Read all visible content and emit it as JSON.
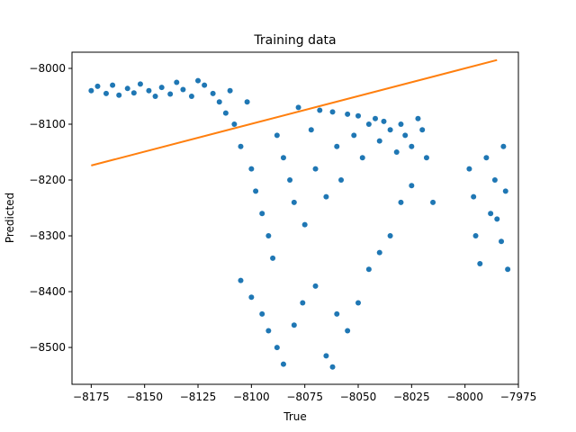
{
  "chart_data": {
    "type": "scatter",
    "title": "Training data",
    "xlabel": "True",
    "ylabel": "Predicted",
    "xlim": [
      -8184,
      -7975
    ],
    "ylim": [
      -8566,
      -7971
    ],
    "xticks": [
      -8175,
      -8150,
      -8125,
      -8100,
      -8075,
      -8050,
      -8025,
      -8000,
      -7975
    ],
    "yticks": [
      -8000,
      -8100,
      -8200,
      -8300,
      -8400,
      -8500
    ],
    "grid": false,
    "series": [
      {
        "kind": "scatter",
        "color": "#1f77b4",
        "points": [
          [
            -8175,
            -8040
          ],
          [
            -8172,
            -8032
          ],
          [
            -8168,
            -8045
          ],
          [
            -8165,
            -8030
          ],
          [
            -8162,
            -8048
          ],
          [
            -8158,
            -8036
          ],
          [
            -8155,
            -8044
          ],
          [
            -8152,
            -8028
          ],
          [
            -8148,
            -8040
          ],
          [
            -8145,
            -8050
          ],
          [
            -8142,
            -8034
          ],
          [
            -8138,
            -8046
          ],
          [
            -8135,
            -8025
          ],
          [
            -8132,
            -8038
          ],
          [
            -8128,
            -8050
          ],
          [
            -8125,
            -8022
          ],
          [
            -8122,
            -8030
          ],
          [
            -8118,
            -8045
          ],
          [
            -8115,
            -8060
          ],
          [
            -8112,
            -8080
          ],
          [
            -8110,
            -8040
          ],
          [
            -8108,
            -8100
          ],
          [
            -8105,
            -8140
          ],
          [
            -8102,
            -8060
          ],
          [
            -8100,
            -8180
          ],
          [
            -8098,
            -8220
          ],
          [
            -8095,
            -8260
          ],
          [
            -8092,
            -8300
          ],
          [
            -8090,
            -8340
          ],
          [
            -8088,
            -8120
          ],
          [
            -8085,
            -8160
          ],
          [
            -8082,
            -8200
          ],
          [
            -8080,
            -8240
          ],
          [
            -8078,
            -8070
          ],
          [
            -8075,
            -8280
          ],
          [
            -8072,
            -8110
          ],
          [
            -8070,
            -8180
          ],
          [
            -8068,
            -8075
          ],
          [
            -8065,
            -8230
          ],
          [
            -8062,
            -8078
          ],
          [
            -8060,
            -8140
          ],
          [
            -8058,
            -8200
          ],
          [
            -8055,
            -8082
          ],
          [
            -8052,
            -8120
          ],
          [
            -8050,
            -8085
          ],
          [
            -8048,
            -8160
          ],
          [
            -8045,
            -8100
          ],
          [
            -8042,
            -8090
          ],
          [
            -8040,
            -8130
          ],
          [
            -8038,
            -8095
          ],
          [
            -8035,
            -8110
          ],
          [
            -8032,
            -8150
          ],
          [
            -8030,
            -8100
          ],
          [
            -8028,
            -8120
          ],
          [
            -8025,
            -8140
          ],
          [
            -8022,
            -8090
          ],
          [
            -8020,
            -8110
          ],
          [
            -8018,
            -8160
          ],
          [
            -8105,
            -8380
          ],
          [
            -8100,
            -8410
          ],
          [
            -8095,
            -8440
          ],
          [
            -8092,
            -8470
          ],
          [
            -8088,
            -8500
          ],
          [
            -8085,
            -8530
          ],
          [
            -8080,
            -8460
          ],
          [
            -8076,
            -8420
          ],
          [
            -8070,
            -8390
          ],
          [
            -8065,
            -8515
          ],
          [
            -8062,
            -8535
          ],
          [
            -8060,
            -8440
          ],
          [
            -8055,
            -8470
          ],
          [
            -8050,
            -8420
          ],
          [
            -8045,
            -8360
          ],
          [
            -8040,
            -8330
          ],
          [
            -8035,
            -8300
          ],
          [
            -8030,
            -8240
          ],
          [
            -8025,
            -8210
          ],
          [
            -8015,
            -8240
          ],
          [
            -7998,
            -8180
          ],
          [
            -7996,
            -8230
          ],
          [
            -7995,
            -8300
          ],
          [
            -7993,
            -8350
          ],
          [
            -7990,
            -8160
          ],
          [
            -7988,
            -8260
          ],
          [
            -7986,
            -8200
          ],
          [
            -7985,
            -8270
          ],
          [
            -7983,
            -8310
          ],
          [
            -7982,
            -8140
          ],
          [
            -7981,
            -8220
          ],
          [
            -7980,
            -8360
          ]
        ]
      },
      {
        "kind": "line",
        "color": "#ff7f0e",
        "points": [
          [
            -8175,
            -8174
          ],
          [
            -7985,
            -7985
          ]
        ]
      }
    ]
  }
}
